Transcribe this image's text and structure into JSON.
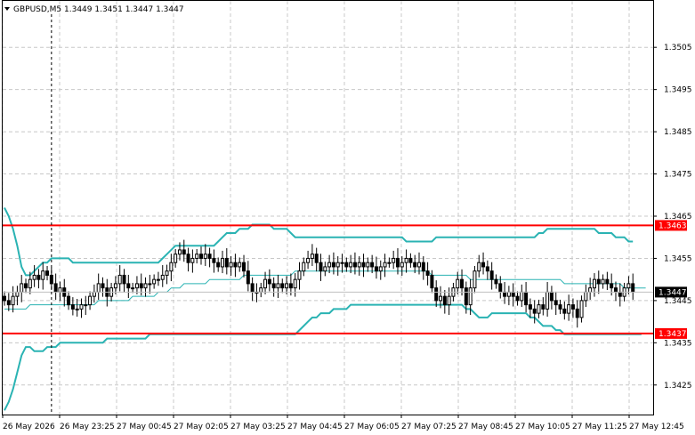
{
  "symbol_header": "GBPUSD,M5  1.3449 1.3451 1.3447 1.3447",
  "colors": {
    "background": "#ffffff",
    "grid": "#c8c8c8",
    "candle": "#000000",
    "bollinger": "#2ab3b3",
    "level_line": "#ff0000",
    "level_label_bg": "#ff0000",
    "last_price_bg": "#000000",
    "label_text": "#ffffff"
  },
  "chart_data": {
    "type": "candlestick",
    "symbol": "GBPUSD",
    "timeframe": "M5",
    "ohlc_header": {
      "open": 1.3449,
      "high": 1.3451,
      "low": 1.3447,
      "close": 1.3447
    },
    "ylim": [
      1.3418,
      1.3516
    ],
    "y_ticks": [
      "1.3505",
      "1.3495",
      "1.3485",
      "1.3475",
      "1.3465",
      "1.3455",
      "1.3445",
      "1.3435",
      "1.3425"
    ],
    "x_ticks": [
      "26 May 2026",
      "26 May 23:25",
      "27 May 00:45",
      "27 May 02:05",
      "27 May 03:25",
      "27 May 04:45",
      "27 May 06:05",
      "27 May 07:25",
      "27 May 08:45",
      "27 May 10:05",
      "27 May 11:25",
      "27 May 12:45"
    ],
    "grid": true,
    "last_price": "1.3447",
    "horizontal_levels": [
      {
        "label": "1.3463",
        "value": 1.34628
      },
      {
        "label": "1.3437",
        "value": 1.34372
      }
    ],
    "vertical_marker_index": 11,
    "candles_close": [
      1.3445,
      1.3444,
      1.3446,
      1.3447,
      1.3449,
      1.3448,
      1.345,
      1.3451,
      1.345,
      1.3452,
      1.3451,
      1.3449,
      1.3447,
      1.3448,
      1.3446,
      1.3444,
      1.3443,
      1.3443,
      1.3444,
      1.3444,
      1.3446,
      1.3447,
      1.3449,
      1.3448,
      1.3446,
      1.3448,
      1.3449,
      1.3451,
      1.3449,
      1.3448,
      1.3448,
      1.3449,
      1.3448,
      1.3449,
      1.3449,
      1.345,
      1.345,
      1.3451,
      1.3452,
      1.3454,
      1.3456,
      1.3457,
      1.3456,
      1.3454,
      1.3455,
      1.3456,
      1.3455,
      1.3456,
      1.3455,
      1.3454,
      1.3453,
      1.3455,
      1.3453,
      1.3454,
      1.3453,
      1.3454,
      1.3452,
      1.3449,
      1.3447,
      1.3447,
      1.3448,
      1.345,
      1.3449,
      1.3448,
      1.3449,
      1.3448,
      1.3449,
      1.3448,
      1.345,
      1.3452,
      1.3454,
      1.3455,
      1.3456,
      1.3454,
      1.3452,
      1.3453,
      1.3454,
      1.3453,
      1.3454,
      1.3454,
      1.3453,
      1.3454,
      1.3453,
      1.3454,
      1.3453,
      1.3454,
      1.3453,
      1.3452,
      1.3453,
      1.3454,
      1.3454,
      1.3455,
      1.3453,
      1.3454,
      1.3455,
      1.3454,
      1.3453,
      1.3454,
      1.3452,
      1.3451,
      1.3448,
      1.3445,
      1.3446,
      1.3444,
      1.3446,
      1.3448,
      1.345,
      1.3448,
      1.3444,
      1.3448,
      1.3452,
      1.3454,
      1.3453,
      1.3452,
      1.345,
      1.3449,
      1.3447,
      1.3446,
      1.3447,
      1.3446,
      1.3445,
      1.3447,
      1.3444,
      1.3443,
      1.3442,
      1.3444,
      1.3443,
      1.3447,
      1.3445,
      1.3444,
      1.3443,
      1.3442,
      1.3444,
      1.3443,
      1.3441,
      1.3445,
      1.3447,
      1.3448,
      1.345,
      1.3449,
      1.345,
      1.3449,
      1.3448,
      1.3447,
      1.3446,
      1.3448,
      1.3449,
      1.3447
    ],
    "bollinger_upper": [
      1.3467,
      1.3465,
      1.3462,
      1.3458,
      1.3453,
      1.3451,
      1.3451,
      1.3452,
      1.3453,
      1.3454,
      1.3454,
      1.3455,
      1.3455,
      1.3455,
      1.3455,
      1.3455,
      1.3454,
      1.3454,
      1.3454,
      1.3454,
      1.3454,
      1.3454,
      1.3454,
      1.3454,
      1.3454,
      1.3454,
      1.3454,
      1.3454,
      1.3454,
      1.3454,
      1.3454,
      1.3454,
      1.3454,
      1.3454,
      1.3454,
      1.3454,
      1.3454,
      1.3455,
      1.3456,
      1.3457,
      1.3458,
      1.3458,
      1.3458,
      1.3458,
      1.3458,
      1.3458,
      1.3458,
      1.3458,
      1.3458,
      1.3458,
      1.3459,
      1.346,
      1.3461,
      1.3461,
      1.3461,
      1.3462,
      1.3462,
      1.3462,
      1.3463,
      1.3463,
      1.3463,
      1.3463,
      1.3463,
      1.3462,
      1.3462,
      1.3462,
      1.3462,
      1.3461,
      1.346,
      1.346,
      1.346,
      1.346,
      1.346,
      1.346,
      1.346,
      1.346,
      1.346,
      1.346,
      1.346,
      1.346,
      1.346,
      1.346,
      1.346,
      1.346,
      1.346,
      1.346,
      1.346,
      1.346,
      1.346,
      1.346,
      1.346,
      1.346,
      1.346,
      1.346,
      1.3459,
      1.3459,
      1.3459,
      1.3459,
      1.3459,
      1.3459,
      1.3459,
      1.346,
      1.346,
      1.346,
      1.346,
      1.346,
      1.346,
      1.346,
      1.346,
      1.346,
      1.346,
      1.346,
      1.346,
      1.346,
      1.346,
      1.346,
      1.346,
      1.346,
      1.346,
      1.346,
      1.346,
      1.346,
      1.346,
      1.346,
      1.346,
      1.3461,
      1.3461,
      1.3462,
      1.3462,
      1.3462,
      1.3462,
      1.3462,
      1.3462,
      1.3462,
      1.3462,
      1.3462,
      1.3462,
      1.3462,
      1.3462,
      1.3461,
      1.3461,
      1.3461,
      1.3461,
      1.346,
      1.346,
      1.346,
      1.3459,
      1.3459
    ],
    "bollinger_middle": [
      1.3443,
      1.3443,
      1.3443,
      1.3443,
      1.3443,
      1.3443,
      1.3444,
      1.3444,
      1.3444,
      1.3444,
      1.3444,
      1.3444,
      1.3444,
      1.3444,
      1.3444,
      1.3444,
      1.3444,
      1.3444,
      1.3444,
      1.3444,
      1.3444,
      1.3444,
      1.3445,
      1.3445,
      1.3445,
      1.3445,
      1.3445,
      1.3445,
      1.3445,
      1.3445,
      1.3446,
      1.3446,
      1.3446,
      1.3446,
      1.3446,
      1.3446,
      1.3447,
      1.3447,
      1.3447,
      1.3448,
      1.3448,
      1.3448,
      1.3449,
      1.3449,
      1.3449,
      1.3449,
      1.3449,
      1.3449,
      1.345,
      1.345,
      1.345,
      1.345,
      1.345,
      1.345,
      1.345,
      1.345,
      1.3451,
      1.3451,
      1.3451,
      1.3451,
      1.3451,
      1.3451,
      1.3451,
      1.3451,
      1.3451,
      1.3451,
      1.3451,
      1.3451,
      1.3452,
      1.3452,
      1.3452,
      1.3452,
      1.3452,
      1.3452,
      1.3452,
      1.3452,
      1.3452,
      1.3452,
      1.3452,
      1.3452,
      1.3452,
      1.3452,
      1.3452,
      1.3452,
      1.3452,
      1.3452,
      1.3452,
      1.3452,
      1.3452,
      1.3452,
      1.3452,
      1.3452,
      1.3452,
      1.3452,
      1.3452,
      1.3452,
      1.3452,
      1.3452,
      1.3452,
      1.3452,
      1.3451,
      1.3451,
      1.3451,
      1.3451,
      1.3451,
      1.3451,
      1.3451,
      1.3451,
      1.3451,
      1.345,
      1.345,
      1.345,
      1.345,
      1.345,
      1.345,
      1.345,
      1.345,
      1.345,
      1.345,
      1.345,
      1.345,
      1.345,
      1.345,
      1.345,
      1.345,
      1.345,
      1.345,
      1.345,
      1.345,
      1.345,
      1.345,
      1.3449,
      1.3449,
      1.3449,
      1.3449,
      1.3449,
      1.3449,
      1.3449,
      1.3449,
      1.3449,
      1.3449,
      1.3449,
      1.3449,
      1.3449,
      1.3449,
      1.3448,
      1.3448,
      1.3448,
      1.3448,
      1.3448,
      1.3448
    ],
    "bollinger_lower": [
      1.3419,
      1.3421,
      1.3424,
      1.3428,
      1.3432,
      1.3434,
      1.3434,
      1.3433,
      1.3433,
      1.3433,
      1.3434,
      1.3434,
      1.3434,
      1.3435,
      1.3435,
      1.3435,
      1.3435,
      1.3435,
      1.3435,
      1.3435,
      1.3435,
      1.3435,
      1.3435,
      1.3435,
      1.3436,
      1.3436,
      1.3436,
      1.3436,
      1.3436,
      1.3436,
      1.3436,
      1.3436,
      1.3436,
      1.3436,
      1.3437,
      1.3437,
      1.3437,
      1.3437,
      1.3437,
      1.3437,
      1.3437,
      1.3437,
      1.3437,
      1.3437,
      1.3437,
      1.3437,
      1.3437,
      1.3437,
      1.3437,
      1.3437,
      1.3437,
      1.3437,
      1.3437,
      1.3437,
      1.3437,
      1.3437,
      1.3437,
      1.3437,
      1.3437,
      1.3437,
      1.3437,
      1.3437,
      1.3437,
      1.3437,
      1.3437,
      1.3437,
      1.3437,
      1.3437,
      1.3437,
      1.3438,
      1.3439,
      1.344,
      1.3441,
      1.3441,
      1.3442,
      1.3442,
      1.3442,
      1.3443,
      1.3443,
      1.3443,
      1.3443,
      1.3444,
      1.3444,
      1.3444,
      1.3444,
      1.3444,
      1.3444,
      1.3444,
      1.3444,
      1.3444,
      1.3444,
      1.3444,
      1.3444,
      1.3444,
      1.3444,
      1.3444,
      1.3444,
      1.3444,
      1.3444,
      1.3444,
      1.3444,
      1.3444,
      1.3444,
      1.3444,
      1.3444,
      1.3444,
      1.3444,
      1.3444,
      1.3443,
      1.3443,
      1.3442,
      1.3441,
      1.3441,
      1.3441,
      1.3442,
      1.3442,
      1.3442,
      1.3442,
      1.3442,
      1.3442,
      1.3442,
      1.3442,
      1.3442,
      1.3441,
      1.3441,
      1.344,
      1.3439,
      1.3439,
      1.3439,
      1.3438,
      1.3438,
      1.3437,
      1.3437,
      1.3437,
      1.3437,
      1.3437,
      1.3437,
      1.3437,
      1.3437,
      1.3437,
      1.3437,
      1.3437,
      1.3437,
      1.3437,
      1.3437,
      1.3437,
      1.3437,
      1.3437,
      1.3437,
      1.3437
    ]
  }
}
